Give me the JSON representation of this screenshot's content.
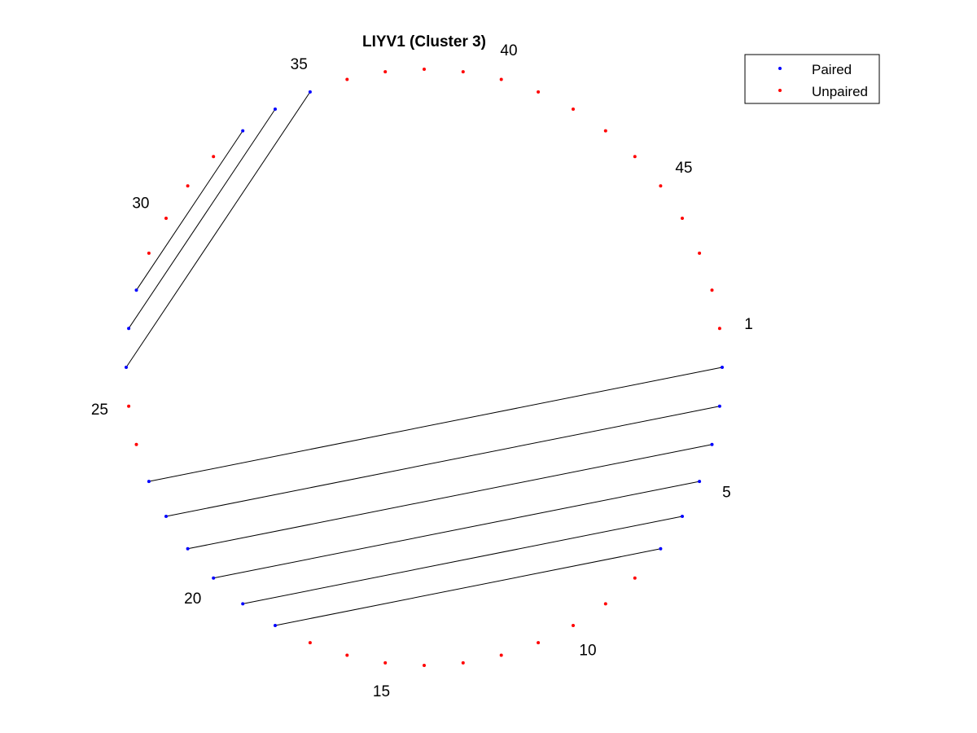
{
  "chart_data": {
    "type": "scatter",
    "subtype": "circular-pairing-plot",
    "title": "LIYV1 (Cluster 3)",
    "n_positions": 48,
    "index_labels": [
      1,
      5,
      10,
      15,
      20,
      25,
      30,
      35,
      40,
      45
    ],
    "index_label_text": [
      "1",
      "5",
      "10",
      "15",
      "20",
      "25",
      "30",
      "35",
      "40",
      "45"
    ],
    "paired_positions": [
      2,
      3,
      4,
      5,
      6,
      7,
      18,
      19,
      20,
      21,
      22,
      23,
      26,
      27,
      28,
      33,
      34,
      35
    ],
    "pairs": [
      [
        2,
        23
      ],
      [
        3,
        22
      ],
      [
        4,
        21
      ],
      [
        5,
        20
      ],
      [
        6,
        19
      ],
      [
        7,
        18
      ],
      [
        26,
        35
      ],
      [
        27,
        34
      ],
      [
        28,
        33
      ]
    ],
    "series": [
      {
        "name": "Paired",
        "color": "#0000ff",
        "marker": "dot"
      },
      {
        "name": "Unpaired",
        "color": "#ff0000",
        "marker": "dot"
      }
    ],
    "link_color": "#000000",
    "legend": {
      "position": "top-right",
      "entries": [
        "Paired",
        "Unpaired"
      ]
    },
    "axes_visible": false
  }
}
